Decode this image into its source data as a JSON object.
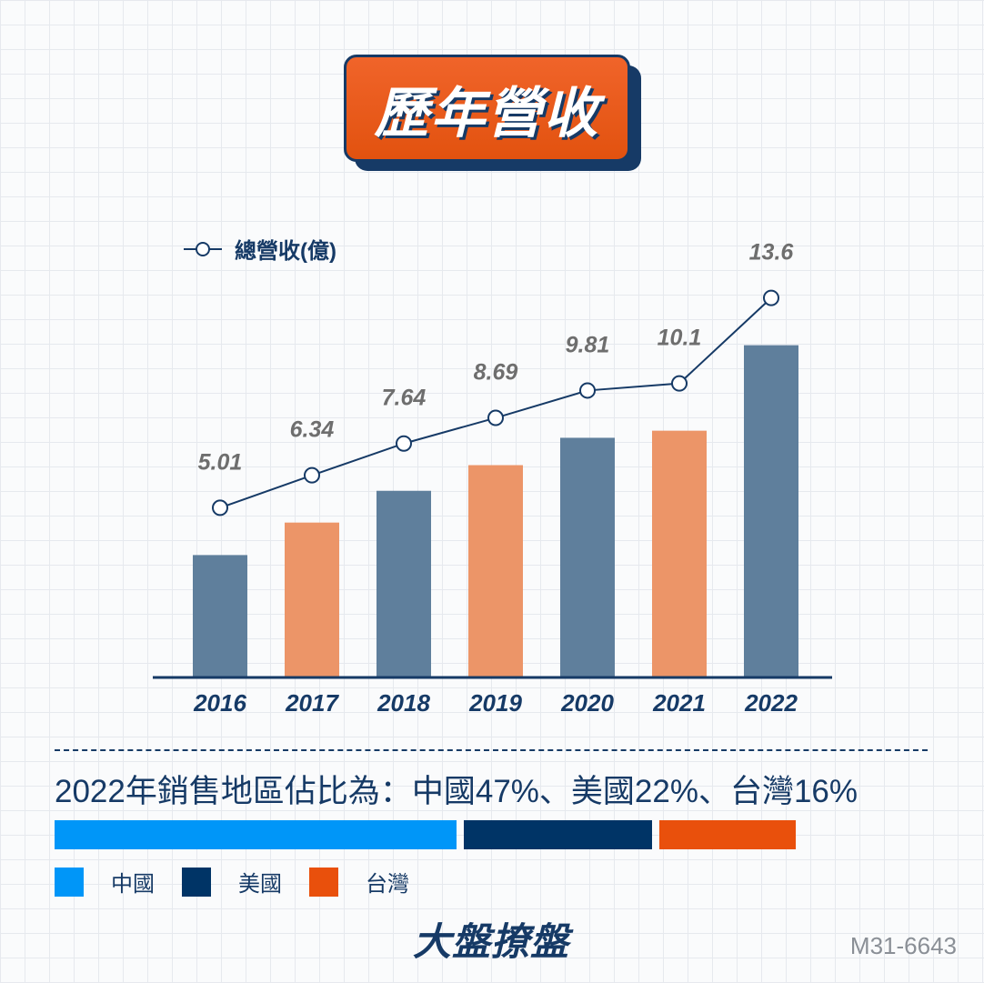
{
  "title": "歷年營收",
  "chart_data": {
    "type": "bar",
    "categories": [
      "2016",
      "2017",
      "2018",
      "2019",
      "2020",
      "2021",
      "2022"
    ],
    "values": [
      5.01,
      6.34,
      7.64,
      8.69,
      9.81,
      10.1,
      13.6
    ],
    "series": [
      {
        "name": "總營收(億)",
        "values": [
          5.01,
          6.34,
          7.64,
          8.69,
          9.81,
          10.1,
          13.6
        ]
      }
    ],
    "bar_colors": [
      "#5f7f9c",
      "#ec9568",
      "#5f7f9c",
      "#ec9568",
      "#5f7f9c",
      "#ec9568",
      "#5f7f9c"
    ],
    "line_color": "#163a66",
    "title": "歷年營收",
    "xlabel": "",
    "ylabel": "",
    "ylim": [
      0,
      15
    ],
    "legend": "top-left"
  },
  "legend_label": "總營收(億)",
  "region_summary": "2022年銷售地區佔比為：中國47%、美國22%、台灣16%",
  "regions": [
    {
      "name": "中國",
      "share": 47,
      "color": "#0096f8"
    },
    {
      "name": "美國",
      "share": 22,
      "color": "#003466"
    },
    {
      "name": "台灣",
      "share": 16,
      "color": "#e9500c"
    }
  ],
  "logo": "大盤撩盤",
  "code": "M31-6643"
}
